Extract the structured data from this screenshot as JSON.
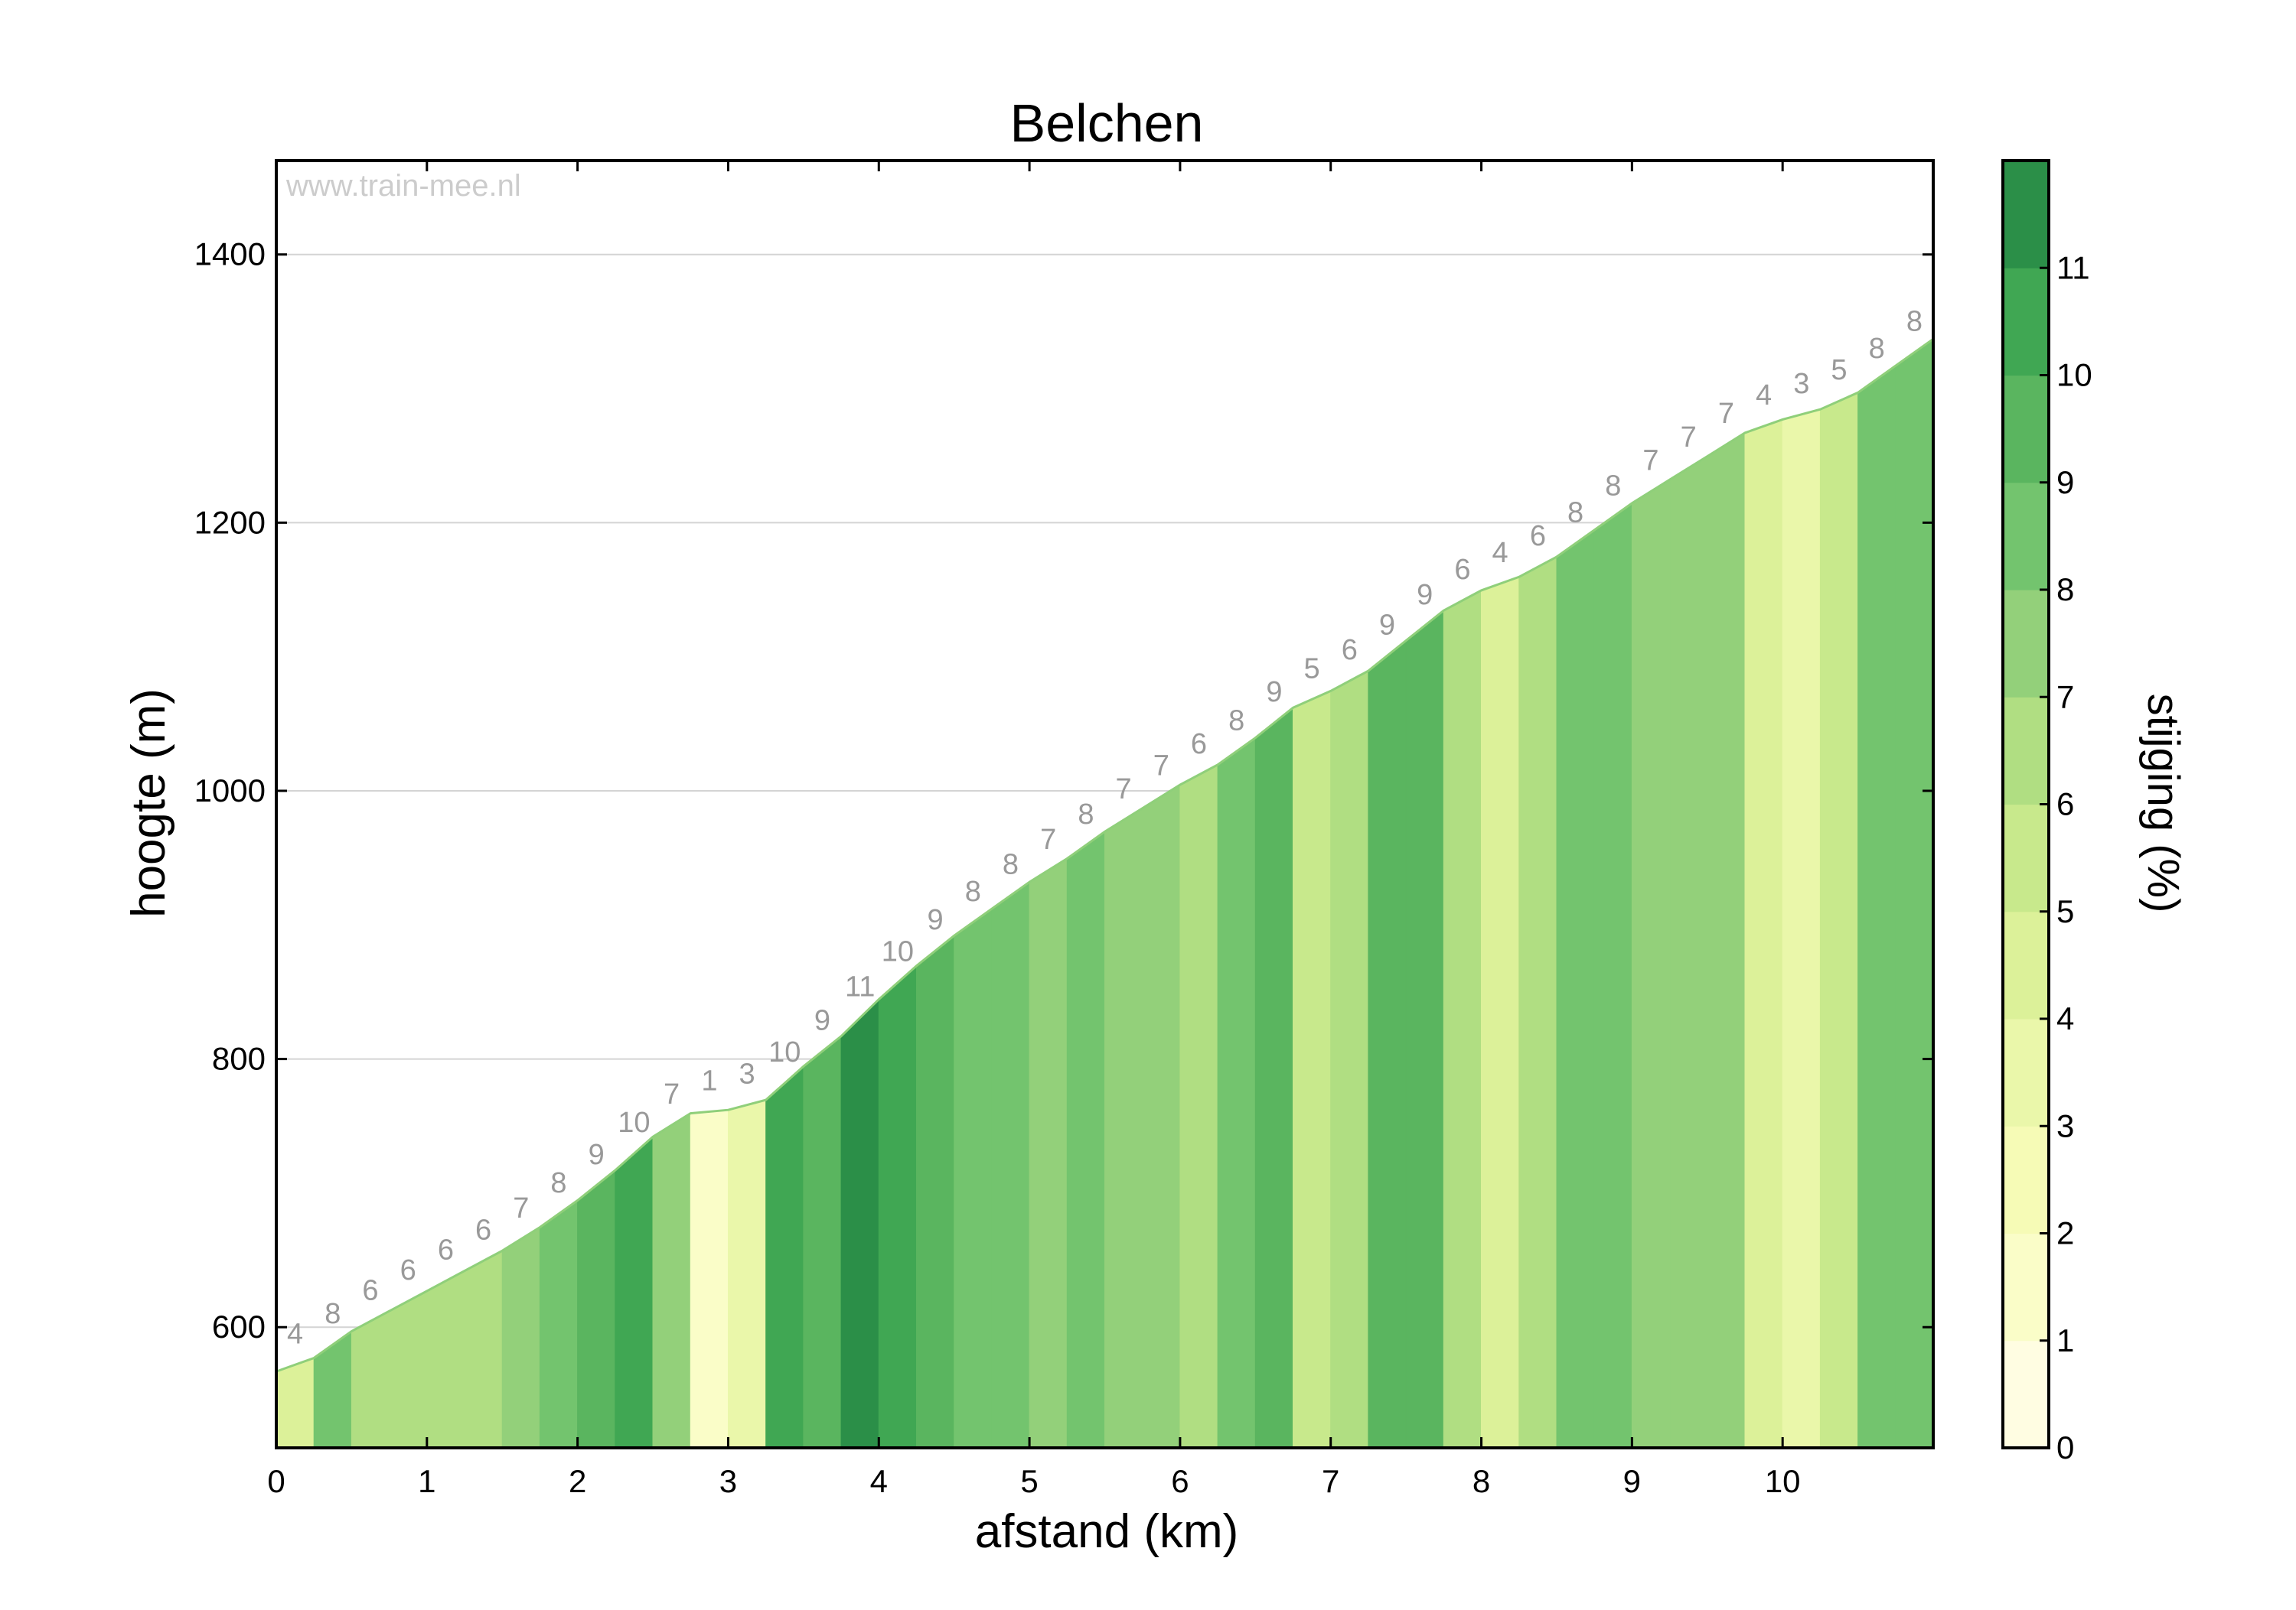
{
  "chart_data": {
    "type": "area",
    "title": "Belchen",
    "xlabel": "afstand (km)",
    "ylabel": "hoogte (m)",
    "watermark": "www.train-mee.nl",
    "xlim": [
      0,
      11
    ],
    "ylim": [
      510,
      1470
    ],
    "xticks": [
      "0",
      "1",
      "2",
      "3",
      "4",
      "5",
      "6",
      "7",
      "8",
      "9",
      "10"
    ],
    "yticks": [
      "600",
      "800",
      "1000",
      "1200",
      "1400"
    ],
    "grid": "horizontal",
    "segment_length_km": 0.25,
    "start_elevation": 567,
    "segments": [
      4,
      8,
      6,
      6,
      6,
      6,
      7,
      8,
      9,
      10,
      7,
      1,
      3,
      10,
      9,
      11,
      10,
      9,
      8,
      8,
      7,
      8,
      7,
      7,
      6,
      8,
      9,
      5,
      6,
      9,
      9,
      6,
      4,
      6,
      8,
      8,
      7,
      7,
      7,
      4,
      3,
      5,
      8,
      8
    ],
    "colorbar": {
      "label": "stijging (%)",
      "ticks": [
        "0",
        "1",
        "2",
        "3",
        "4",
        "5",
        "6",
        "7",
        "8",
        "9",
        "10",
        "11"
      ],
      "colors": [
        "#fffde2",
        "#fafdc8",
        "#f6fbb6",
        "#eaf7aa",
        "#dcf199",
        "#c8e98c",
        "#b0de82",
        "#93d07a",
        "#73c46e",
        "#5ab55f",
        "#40a753",
        "#2b8f48"
      ]
    }
  }
}
